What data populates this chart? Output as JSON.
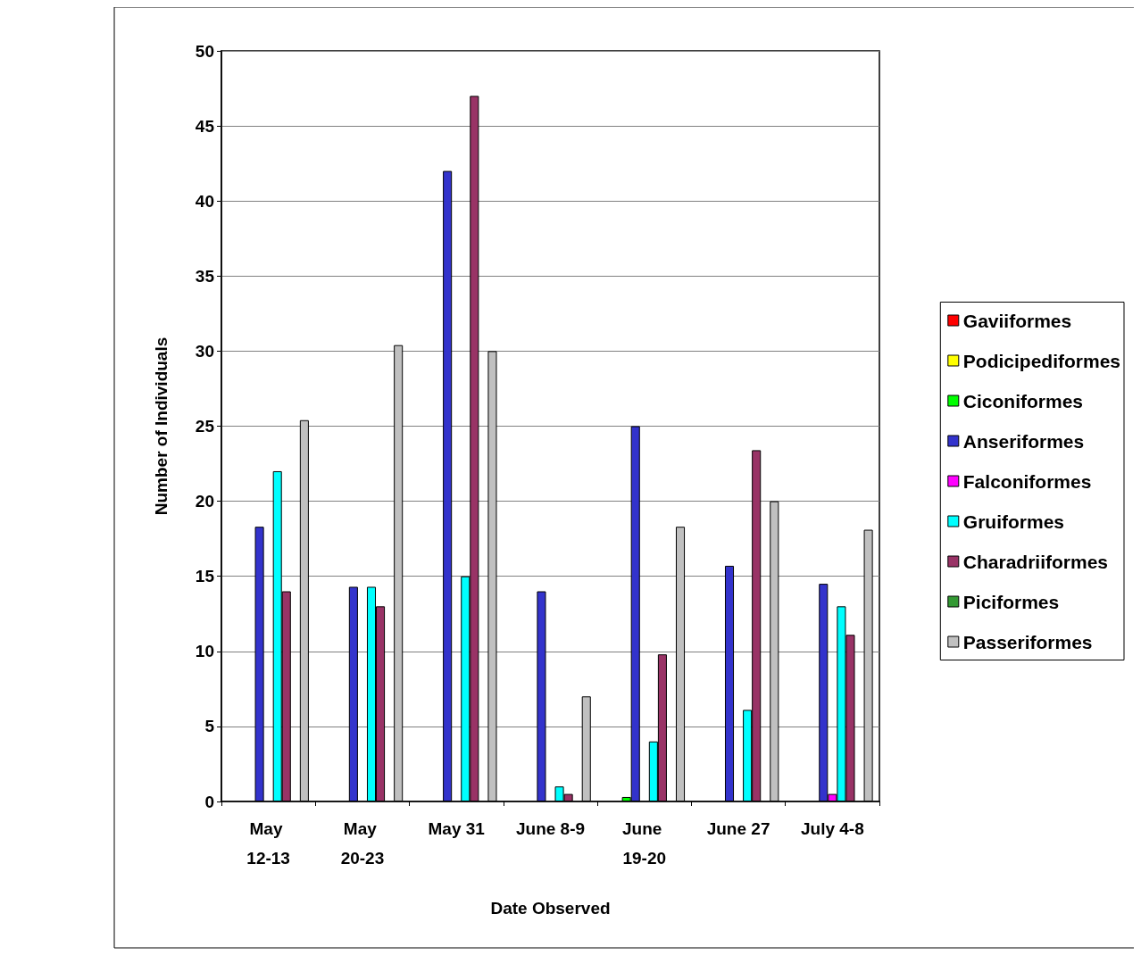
{
  "chart_data": {
    "type": "bar",
    "xlabel": "Date Observed",
    "ylabel": "Number of Individuals",
    "categories": [
      "May 12-13",
      "May 20-23",
      "May 31",
      "June 8-9",
      "June 19-20",
      "June 27",
      "July 4-8"
    ],
    "ylim": [
      0,
      50
    ],
    "yticks": [
      0,
      5,
      10,
      15,
      20,
      25,
      30,
      35,
      40,
      45,
      50
    ],
    "grid": "y",
    "legend": "right",
    "series": [
      {
        "name": "Gaviiformes",
        "color": "#ff0000",
        "values": [
          null,
          null,
          null,
          null,
          null,
          null,
          null
        ]
      },
      {
        "name": "Podicipediformes",
        "color": "#ffff00",
        "values": [
          null,
          null,
          null,
          null,
          null,
          null,
          null
        ]
      },
      {
        "name": "Ciconiformes",
        "color": "#00ff00",
        "values": [
          null,
          null,
          null,
          null,
          0.3,
          null,
          null
        ]
      },
      {
        "name": "Anseriformes",
        "color": "#3333cc",
        "values": [
          18.3,
          14.3,
          42,
          14,
          25,
          15.7,
          14.5
        ]
      },
      {
        "name": "Falconiformes",
        "color": "#ff00ff",
        "values": [
          null,
          null,
          null,
          null,
          null,
          null,
          0.5
        ]
      },
      {
        "name": "Gruiformes",
        "color": "#00ffff",
        "values": [
          22,
          14.3,
          15,
          1,
          4,
          6.1,
          13
        ]
      },
      {
        "name": "Charadriiformes",
        "color": "#993366",
        "values": [
          14,
          13,
          47,
          0.5,
          9.8,
          23.4,
          11.1
        ]
      },
      {
        "name": "Piciformes",
        "color": "#339933",
        "values": [
          null,
          null,
          null,
          null,
          null,
          null,
          null
        ]
      },
      {
        "name": "Passeriformes",
        "color": "#c0c0c0",
        "values": [
          25.4,
          30.4,
          30,
          7,
          18.3,
          20,
          18.1
        ]
      }
    ]
  }
}
